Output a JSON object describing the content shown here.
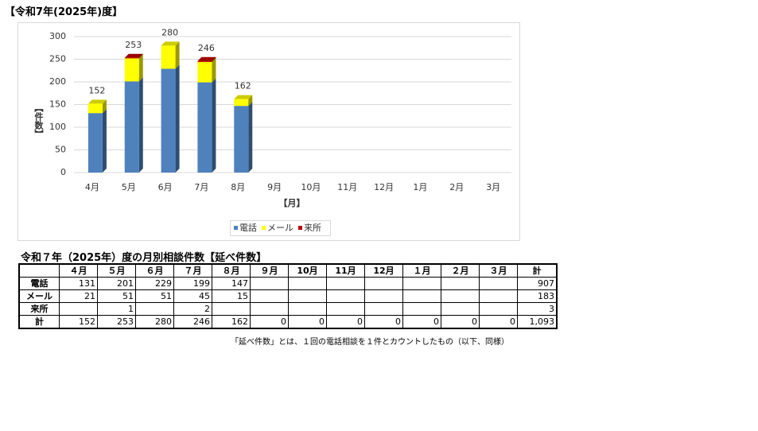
{
  "title": "【令和7年(2025年)度】",
  "chart_data": {
    "type": "bar",
    "stacked": true,
    "categories": [
      "4月",
      "5月",
      "6月",
      "7月",
      "8月",
      "9月",
      "10月",
      "11月",
      "12月",
      "1月",
      "2月",
      "3月"
    ],
    "series": [
      {
        "name": "電話",
        "color": "#4f81bd",
        "values": [
          131,
          201,
          229,
          199,
          147,
          null,
          null,
          null,
          null,
          null,
          null,
          null
        ]
      },
      {
        "name": "メール",
        "color": "#ffff00",
        "values": [
          21,
          51,
          51,
          45,
          15,
          null,
          null,
          null,
          null,
          null,
          null,
          null
        ]
      },
      {
        "name": "来所",
        "color": "#c00000",
        "values": [
          null,
          1,
          null,
          2,
          null,
          null,
          null,
          null,
          null,
          null,
          null,
          null
        ]
      }
    ],
    "totals": [
      152,
      253,
      280,
      246,
      162,
      null,
      null,
      null,
      null,
      null,
      null,
      null
    ],
    "ylim": [
      0,
      300
    ],
    "yticks": [
      0,
      50,
      100,
      150,
      200,
      250,
      300
    ],
    "grid": true,
    "y_label": "【件数】",
    "x_label": "【月】",
    "legend": "bottom"
  },
  "table": {
    "title": "令和７年（2025年）度の月別相談件数【延べ件数】",
    "header": [
      null,
      "４月",
      "５月",
      "６月",
      "７月",
      "８月",
      "９月",
      "10月",
      "11月",
      "12月",
      "１月",
      "２月",
      "３月",
      "計"
    ],
    "rows": [
      [
        "電話",
        "131",
        "201",
        "229",
        "199",
        "147",
        null,
        null,
        null,
        null,
        null,
        null,
        null,
        "907"
      ],
      [
        "メール",
        "21",
        "51",
        "51",
        "45",
        "15",
        null,
        null,
        null,
        null,
        null,
        null,
        null,
        "183"
      ],
      [
        "来所",
        null,
        "1",
        null,
        "2",
        null,
        null,
        null,
        null,
        null,
        null,
        null,
        null,
        "3"
      ],
      [
        "計",
        "152",
        "253",
        "280",
        "246",
        "162",
        "0",
        "0",
        "0",
        "0",
        "0",
        "0",
        "0",
        "1,093"
      ]
    ]
  },
  "note": "「延べ件数」とは、１回の電話相談を１件とカウントしたもの（以下、同様）"
}
